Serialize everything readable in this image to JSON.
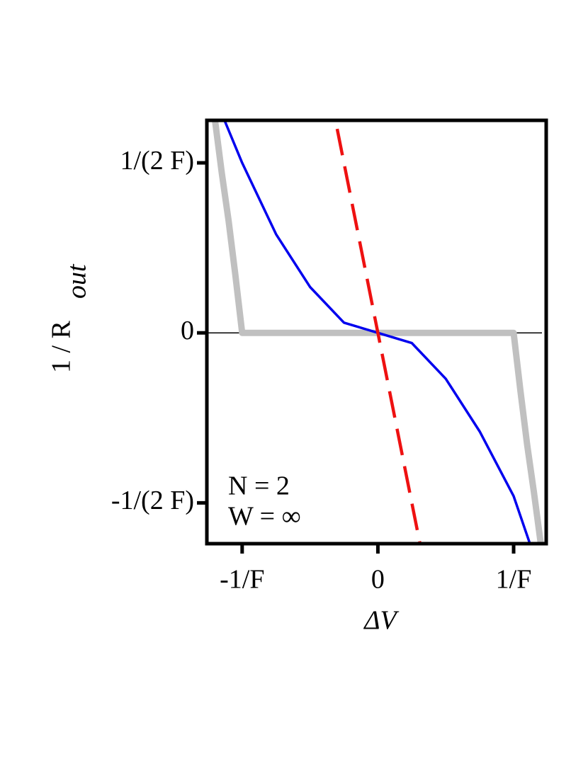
{
  "chart_data": {
    "type": "line",
    "xlabel": "ΔV",
    "ylabel": {
      "text": "1 / R",
      "subscript": "out"
    },
    "annotations": [
      "N = 2",
      "W = ∞"
    ],
    "xlim": [
      -1.26,
      1.24
    ],
    "ylim": [
      -0.62,
      0.625
    ],
    "xticks": [
      {
        "value": -1,
        "label": "-1/F"
      },
      0,
      {
        "value": 1,
        "label": "1/F"
      }
    ],
    "yticks": [
      {
        "value": -0.5,
        "label": "-1/(2 F)"
      },
      0,
      {
        "value": 0.5,
        "label": "1/(2 F)"
      }
    ],
    "series": [
      {
        "color": "#c0c0c0",
        "width": 9,
        "dash": false,
        "x": [
          -1.2,
          -1.15,
          -1.1,
          -1.05,
          -1.0,
          1.0,
          1.05,
          1.1,
          1.15,
          1.2
        ],
        "values": [
          0.625,
          0.47,
          0.33,
          0.17,
          0,
          0,
          -0.17,
          -0.33,
          -0.47,
          -0.62
        ]
      },
      {
        "color": "#0000ee",
        "width": 3.5,
        "dash": false,
        "x": [
          -1.13,
          -1.0,
          -0.75,
          -0.5,
          -0.25,
          0,
          0.25,
          0.5,
          0.75,
          1.0,
          1.12
        ],
        "values": [
          0.625,
          0.5,
          0.29,
          0.135,
          0.03,
          0,
          -0.03,
          -0.135,
          -0.29,
          -0.48,
          -0.62
        ]
      },
      {
        "color": "#ee1111",
        "width": 4.5,
        "dash": true,
        "x": [
          -0.3,
          0.31
        ],
        "values": [
          0.6,
          -0.62
        ]
      }
    ]
  }
}
